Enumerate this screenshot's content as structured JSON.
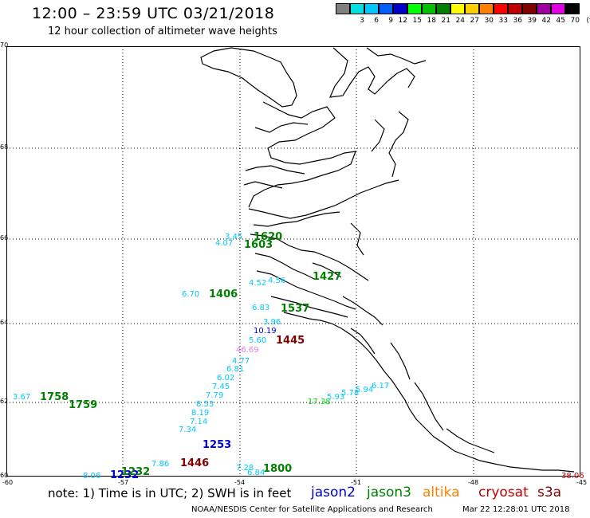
{
  "header": {
    "title": "12:00 – 23:59 UTC 03/21/2018",
    "subtitle": "12 hour collection of altimeter wave heights"
  },
  "colorbar": {
    "unit": "(ft)",
    "bins": [
      {
        "label": "",
        "color": "#808080"
      },
      {
        "label": "3",
        "color": "#00e0e0"
      },
      {
        "label": "6",
        "color": "#00c8ff"
      },
      {
        "label": "9",
        "color": "#0060ff"
      },
      {
        "label": "12",
        "color": "#0000cc"
      },
      {
        "label": "15",
        "color": "#00ff00"
      },
      {
        "label": "18",
        "color": "#00c000"
      },
      {
        "label": "21",
        "color": "#008000"
      },
      {
        "label": "24",
        "color": "#ffff00"
      },
      {
        "label": "27",
        "color": "#ffd000"
      },
      {
        "label": "30",
        "color": "#ff8000"
      },
      {
        "label": "33",
        "color": "#ff0000"
      },
      {
        "label": "36",
        "color": "#c00000"
      },
      {
        "label": "39",
        "color": "#800000"
      },
      {
        "label": "42",
        "color": "#a000a0"
      },
      {
        "label": "45",
        "color": "#e000e0"
      },
      {
        "label": "70",
        "color": "#000000"
      }
    ]
  },
  "axes": {
    "lat_labels": [
      "70",
      "68",
      "66",
      "64",
      "62",
      "60"
    ],
    "lon_labels": [
      "-60",
      "-57",
      "-54",
      "-51",
      "-48",
      "-45"
    ]
  },
  "observations": {
    "swh": [
      {
        "text": "3.67",
        "color": "#00c8ff"
      },
      {
        "text": "6.70",
        "color": "#00c8ff"
      },
      {
        "text": "4.07",
        "color": "#00c8ff"
      },
      {
        "text": "3.45",
        "color": "#00c8ff"
      },
      {
        "text": "4.52",
        "color": "#00c8ff"
      },
      {
        "text": "4.56",
        "color": "#00c8ff"
      },
      {
        "text": "6.83",
        "color": "#00c8ff"
      },
      {
        "text": "3.96",
        "color": "#00c8ff"
      },
      {
        "text": "10.19",
        "color": "#0000cc"
      },
      {
        "text": "5.60",
        "color": "#00c8ff"
      },
      {
        "text": "46.69",
        "color": "#e080e0"
      },
      {
        "text": "4.77",
        "color": "#00c8ff"
      },
      {
        "text": "6.81",
        "color": "#00c8ff"
      },
      {
        "text": "6.02",
        "color": "#00c8ff"
      },
      {
        "text": "7.45",
        "color": "#00c8ff"
      },
      {
        "text": "7.79",
        "color": "#00c8ff"
      },
      {
        "text": "8.53",
        "color": "#00c8ff"
      },
      {
        "text": "8.19",
        "color": "#00c8ff"
      },
      {
        "text": "7.14",
        "color": "#00c8ff"
      },
      {
        "text": "7.34",
        "color": "#00c8ff"
      },
      {
        "text": "7.86",
        "color": "#00c8ff"
      },
      {
        "text": "8.06",
        "color": "#00c8ff"
      },
      {
        "text": "7.28",
        "color": "#00c8ff"
      },
      {
        "text": "6.84",
        "color": "#00c8ff"
      },
      {
        "text": "17.38",
        "color": "#00e000"
      },
      {
        "text": "5.93",
        "color": "#00c8ff"
      },
      {
        "text": "5.78",
        "color": "#00c8ff"
      },
      {
        "text": "5.94",
        "color": "#00c8ff"
      },
      {
        "text": "6.17",
        "color": "#00c8ff"
      },
      {
        "text": "38.06",
        "color": "#c00000"
      }
    ],
    "times": [
      {
        "text": "1758",
        "color": "#008000"
      },
      {
        "text": "1759",
        "color": "#008000"
      },
      {
        "text": "1406",
        "color": "#008000"
      },
      {
        "text": "1620",
        "color": "#008000"
      },
      {
        "text": "1603",
        "color": "#008000"
      },
      {
        "text": "1427",
        "color": "#008000"
      },
      {
        "text": "1537",
        "color": "#008000"
      },
      {
        "text": "1445",
        "color": "#800000"
      },
      {
        "text": "1253",
        "color": "#0000cc"
      },
      {
        "text": "1446",
        "color": "#800000"
      },
      {
        "text": "1232",
        "color": "#0000cc"
      },
      {
        "text": "1232",
        "color": "#008000"
      },
      {
        "text": "1800",
        "color": "#008000"
      }
    ]
  },
  "footer": {
    "note": "note:  1) Time is in UTC;  2) SWH is in feet",
    "legend": [
      {
        "label": "jason2",
        "color": "#0000cc"
      },
      {
        "label": "jason3",
        "color": "#008000"
      },
      {
        "label": "altika",
        "color": "#ff8000"
      },
      {
        "label": "cryosat",
        "color": "#c00000"
      },
      {
        "label": "s3a",
        "color": "#800000"
      }
    ],
    "credit": "NOAA/NESDIS Center for Satellite Applications and Research",
    "timestamp": "Mar 22 12:28:01 UTC 2018"
  }
}
